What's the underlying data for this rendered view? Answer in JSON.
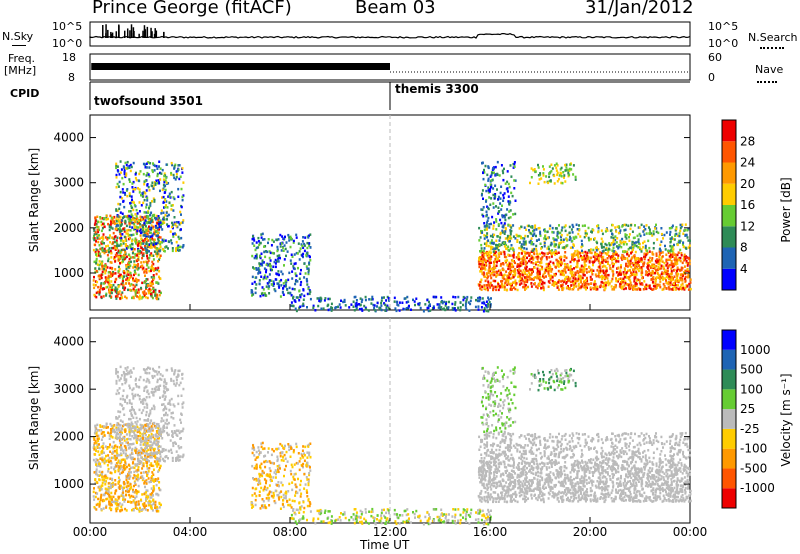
{
  "header": {
    "station": "Prince George (fitACF)",
    "beam": "Beam 03",
    "date": "31/Jan/2012"
  },
  "panels": {
    "nsky": {
      "label": "N.Sky",
      "tick_top": "10^5",
      "tick_bottom": "10^0",
      "right_top": "10^5",
      "right_bottom": "10^0",
      "right_label": "N.Search"
    },
    "freq": {
      "label_top": "Freq.",
      "label_bottom": "[MHz]",
      "tick_top": "18",
      "tick_bottom": "8",
      "right_top": "60",
      "right_bottom": "0",
      "right_label": "Nave"
    },
    "cpid": {
      "label": "CPID",
      "program1": "twofsound 3501",
      "program2": "themis 3300"
    }
  },
  "colors": {
    "power": [
      "#0000ff",
      "#1e64b4",
      "#2e8b57",
      "#66cc33",
      "#ffcc00",
      "#ff9900",
      "#ff5500",
      "#ee0000"
    ],
    "velocity": [
      "#ee0000",
      "#ff5500",
      "#ff9900",
      "#ffcc00",
      "#bbbbbb",
      "#66cc33",
      "#2e8b57",
      "#1e64b4",
      "#0000ff"
    ]
  },
  "chart_data": [
    {
      "type": "heatmap",
      "name": "power",
      "ylabel": "Slant Range [km]",
      "xlabel": "",
      "ylim": [
        180,
        4500
      ],
      "yticks": [
        "4000",
        "3000",
        "2000",
        "1000"
      ],
      "ytick_values": [
        4000,
        3000,
        2000,
        1000
      ],
      "colorbar_label": "Power [dB]",
      "colorbar_ticks": [
        "28",
        "24",
        "20",
        "16",
        "12",
        "8",
        "4"
      ],
      "colorbar_ticks_values": [
        28,
        24,
        20,
        16,
        12,
        8,
        4
      ],
      "colorbar_range": [
        0,
        32
      ]
    },
    {
      "type": "heatmap",
      "name": "velocity",
      "ylabel": "Slant Range [km]",
      "xlabel": "Time UT",
      "ylim": [
        180,
        4500
      ],
      "yticks": [
        "4000",
        "3000",
        "2000",
        "1000"
      ],
      "ytick_values": [
        4000,
        3000,
        2000,
        1000
      ],
      "colorbar_label": "Velocity [m s⁻¹]",
      "colorbar_ticks": [
        "1000",
        "500",
        "100",
        "25",
        "-25",
        "-100",
        "-500",
        "-1000"
      ]
    }
  ],
  "xaxis": {
    "label": "Time UT",
    "ticks": [
      "00:00",
      "04:00",
      "08:00",
      "12:00",
      "16:00",
      "20:00",
      "00:00"
    ],
    "tick_hours": [
      0,
      4,
      8,
      12,
      16,
      20,
      24
    ],
    "program_switch_hour": 12
  }
}
